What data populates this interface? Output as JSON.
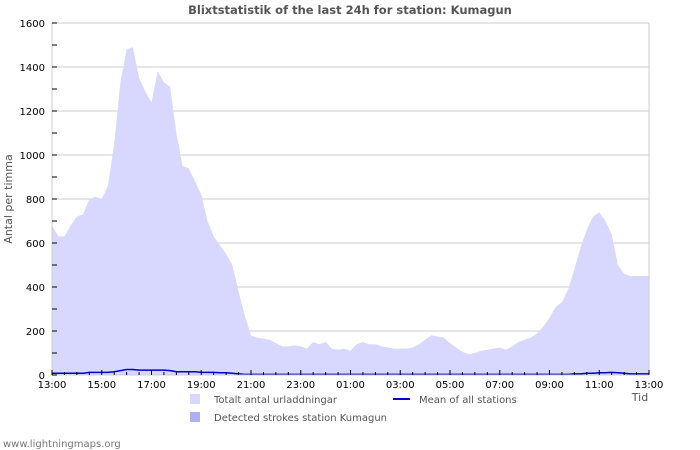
{
  "chart_data": {
    "type": "area",
    "title": "Blixtstatistik of the last 24h for station: Kumagun",
    "xlabel": "Tid",
    "ylabel": "Antal per timma",
    "ylim": [
      0,
      1600
    ],
    "yticks": [
      0,
      200,
      400,
      600,
      800,
      1000,
      1200,
      1400,
      1600
    ],
    "xticks": [
      "13:00",
      "15:00",
      "17:00",
      "19:00",
      "21:00",
      "23:00",
      "01:00",
      "03:00",
      "05:00",
      "07:00",
      "09:00",
      "11:00",
      "13:00"
    ],
    "grid": true,
    "legend_position": "bottom",
    "x_hours_from_start": [
      0,
      0.25,
      0.5,
      0.75,
      1,
      1.25,
      1.5,
      1.75,
      2,
      2.25,
      2.5,
      2.75,
      3,
      3.25,
      3.5,
      3.75,
      4,
      4.25,
      4.5,
      4.75,
      5,
      5.25,
      5.5,
      5.75,
      6,
      6.25,
      6.5,
      6.75,
      7,
      7.25,
      7.5,
      7.75,
      8,
      8.25,
      8.5,
      8.75,
      9,
      9.25,
      9.5,
      9.75,
      10,
      10.25,
      10.5,
      10.75,
      11,
      11.25,
      11.5,
      11.75,
      12,
      12.25,
      12.5,
      12.75,
      13,
      13.25,
      13.5,
      13.75,
      14,
      14.25,
      14.5,
      14.75,
      15,
      15.25,
      15.5,
      15.75,
      16,
      16.25,
      16.5,
      16.75,
      17,
      17.25,
      17.5,
      17.75,
      18,
      18.25,
      18.5,
      18.75,
      19,
      19.25,
      19.5,
      19.75,
      20,
      20.25,
      20.5,
      20.75,
      21,
      21.25,
      21.5,
      21.75,
      22,
      22.25,
      22.5,
      22.75,
      23,
      23.25,
      23.5,
      23.75,
      24
    ],
    "series": [
      {
        "name": "Totalt antal urladdningar",
        "type": "area",
        "color": "#d8d8ff",
        "values": [
          680,
          630,
          630,
          680,
          720,
          730,
          800,
          810,
          800,
          860,
          1050,
          1330,
          1480,
          1490,
          1350,
          1290,
          1240,
          1380,
          1330,
          1310,
          1100,
          950,
          940,
          880,
          820,
          700,
          630,
          590,
          550,
          500,
          380,
          270,
          180,
          170,
          165,
          160,
          145,
          130,
          130,
          135,
          130,
          120,
          150,
          140,
          150,
          120,
          115,
          120,
          110,
          140,
          150,
          140,
          140,
          130,
          125,
          120,
          120,
          120,
          125,
          140,
          160,
          180,
          175,
          170,
          145,
          125,
          105,
          95,
          100,
          110,
          115,
          120,
          125,
          115,
          130,
          150,
          160,
          170,
          190,
          220,
          260,
          310,
          330,
          390,
          480,
          580,
          660,
          720,
          740,
          700,
          640,
          500,
          460,
          450,
          450,
          450,
          450
        ]
      },
      {
        "name": "Detected strokes station Kumagun",
        "type": "area",
        "color": "#b0b0f0",
        "values": []
      },
      {
        "name": "Mean of all stations",
        "type": "line",
        "color": "#0000cc",
        "values": [
          8,
          8,
          8,
          8,
          8,
          8,
          12,
          12,
          12,
          12,
          15,
          20,
          25,
          25,
          22,
          22,
          22,
          22,
          22,
          20,
          15,
          15,
          15,
          15,
          12,
          12,
          12,
          10,
          10,
          8,
          5,
          3,
          3,
          3,
          3,
          3,
          3,
          3,
          3,
          3,
          3,
          3,
          3,
          3,
          3,
          3,
          3,
          3,
          3,
          3,
          3,
          3,
          3,
          3,
          3,
          3,
          3,
          3,
          3,
          3,
          3,
          3,
          3,
          3,
          3,
          3,
          3,
          3,
          3,
          3,
          3,
          3,
          3,
          3,
          3,
          3,
          3,
          3,
          3,
          3,
          3,
          3,
          3,
          3,
          5,
          5,
          8,
          8,
          10,
          10,
          12,
          10,
          8,
          5,
          5,
          5,
          5
        ]
      }
    ]
  },
  "legend": {
    "items": [
      {
        "label": "Totalt antal urladdningar",
        "color": "#d8d8ff",
        "kind": "box"
      },
      {
        "label": "Detected strokes station Kumagun",
        "color": "#b0b0f0",
        "kind": "box"
      },
      {
        "label": "Mean of all stations",
        "color": "#0000cc",
        "kind": "line"
      }
    ]
  },
  "footer": {
    "text": "www.lightningmaps.org"
  },
  "colors": {
    "grid": "#cccccc",
    "axis": "#cccccc",
    "title": "#555555"
  }
}
